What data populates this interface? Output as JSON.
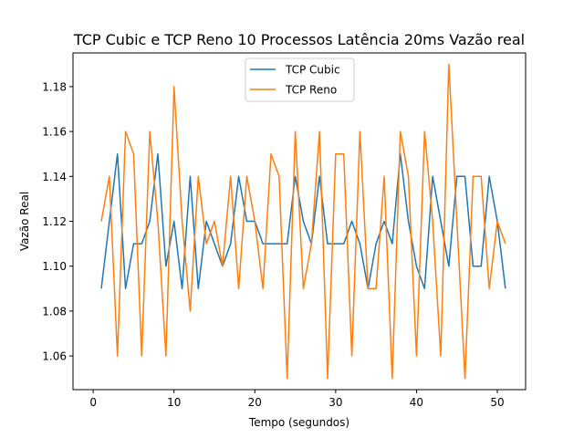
{
  "chart_data": {
    "type": "line",
    "title": "TCP Cubic e TCP Reno 10 Processos Latência 20ms Vazão real",
    "xlabel": "Tempo (segundos)",
    "ylabel": "Vazão Real",
    "xlim": [
      -2.5,
      53.5
    ],
    "ylim": [
      1.045,
      1.195
    ],
    "xticks": [
      0,
      10,
      20,
      30,
      40,
      50
    ],
    "yticks": [
      1.06,
      1.08,
      1.1,
      1.12,
      1.14,
      1.16,
      1.18
    ],
    "legend": "upper-center",
    "grid": false,
    "series": [
      {
        "name": "TCP Cubic",
        "color": "#1f77b4",
        "x": [
          1,
          2,
          3,
          4,
          5,
          6,
          7,
          8,
          9,
          10,
          11,
          12,
          13,
          14,
          15,
          16,
          17,
          18,
          19,
          20,
          21,
          22,
          23,
          24,
          25,
          26,
          27,
          28,
          29,
          30,
          31,
          32,
          33,
          34,
          35,
          36,
          37,
          38,
          39,
          40,
          41,
          42,
          43,
          44,
          45,
          46,
          47,
          48,
          49,
          50,
          51
        ],
        "values": [
          1.09,
          1.12,
          1.15,
          1.09,
          1.11,
          1.11,
          1.12,
          1.15,
          1.1,
          1.12,
          1.09,
          1.14,
          1.09,
          1.12,
          1.11,
          1.1,
          1.11,
          1.14,
          1.12,
          1.12,
          1.11,
          1.11,
          1.11,
          1.11,
          1.14,
          1.12,
          1.11,
          1.14,
          1.11,
          1.11,
          1.11,
          1.12,
          1.11,
          1.09,
          1.11,
          1.12,
          1.11,
          1.15,
          1.12,
          1.1,
          1.09,
          1.14,
          1.12,
          1.1,
          1.14,
          1.14,
          1.1,
          1.1,
          1.14,
          1.12,
          1.09
        ]
      },
      {
        "name": "TCP Reno",
        "color": "#ff7f0e",
        "x": [
          1,
          2,
          3,
          4,
          5,
          6,
          7,
          8,
          9,
          10,
          11,
          12,
          13,
          14,
          15,
          16,
          17,
          18,
          19,
          20,
          21,
          22,
          23,
          24,
          25,
          26,
          27,
          28,
          29,
          30,
          31,
          32,
          33,
          34,
          35,
          36,
          37,
          38,
          39,
          40,
          41,
          42,
          43,
          44,
          45,
          46,
          47,
          48,
          49,
          50,
          51
        ],
        "values": [
          1.12,
          1.14,
          1.06,
          1.16,
          1.15,
          1.06,
          1.16,
          1.12,
          1.06,
          1.18,
          1.12,
          1.08,
          1.14,
          1.11,
          1.12,
          1.1,
          1.14,
          1.09,
          1.14,
          1.12,
          1.09,
          1.15,
          1.14,
          1.05,
          1.16,
          1.09,
          1.11,
          1.16,
          1.05,
          1.15,
          1.15,
          1.06,
          1.16,
          1.09,
          1.09,
          1.14,
          1.05,
          1.16,
          1.14,
          1.06,
          1.16,
          1.12,
          1.06,
          1.19,
          1.12,
          1.05,
          1.14,
          1.14,
          1.09,
          1.12,
          1.11
        ]
      }
    ]
  }
}
